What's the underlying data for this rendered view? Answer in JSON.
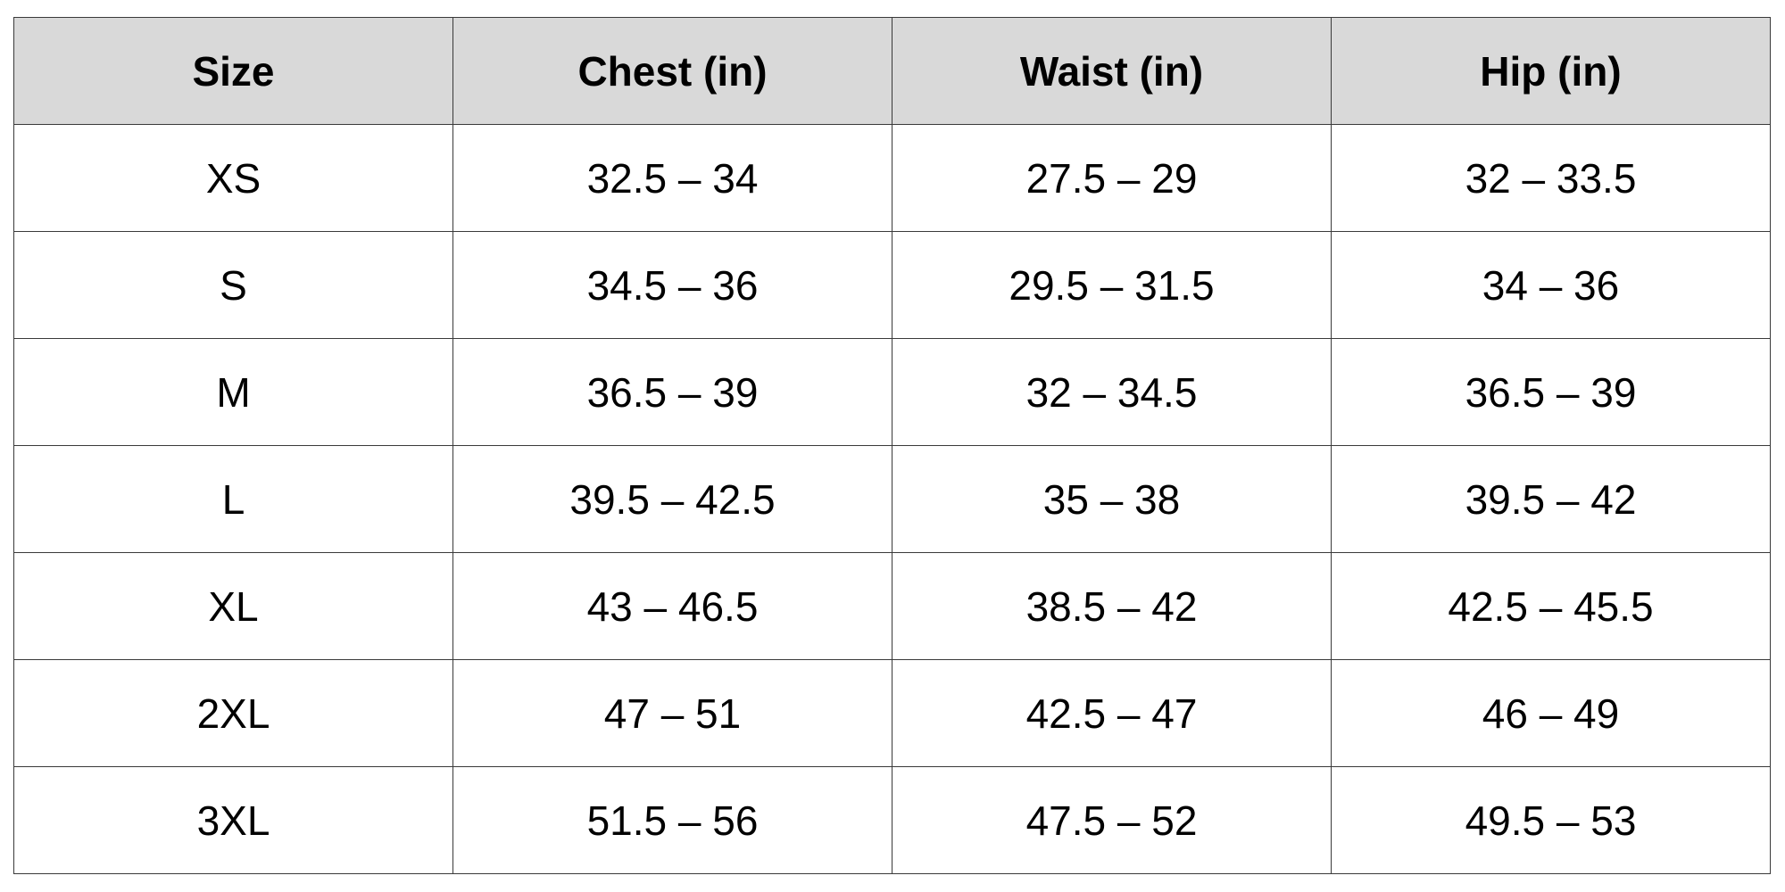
{
  "table": {
    "header_bg": "#d9d9d9",
    "columns": [
      "Size",
      "Chest (in)",
      "Waist (in)",
      "Hip (in)"
    ],
    "rows": [
      [
        "XS",
        "32.5 – 34",
        "27.5 – 29",
        "32 – 33.5"
      ],
      [
        "S",
        "34.5 – 36",
        "29.5 – 31.5",
        "34 – 36"
      ],
      [
        "M",
        "36.5 – 39",
        "32 – 34.5",
        "36.5 – 39"
      ],
      [
        "L",
        "39.5 – 42.5",
        "35 – 38",
        "39.5 – 42"
      ],
      [
        "XL",
        "43 – 46.5",
        "38.5 – 42",
        "42.5 – 45.5"
      ],
      [
        "2XL",
        "47 – 51",
        "42.5 – 47",
        "46 – 49"
      ],
      [
        "3XL",
        "51.5 – 56",
        "47.5 – 52",
        "49.5 – 53"
      ]
    ]
  }
}
